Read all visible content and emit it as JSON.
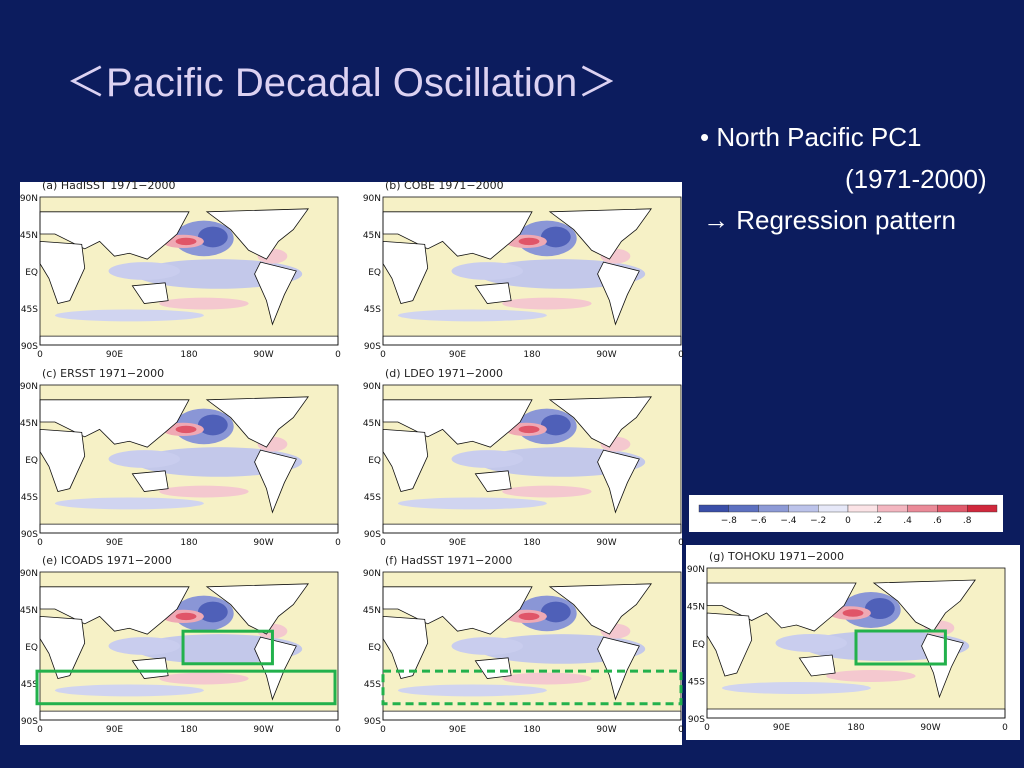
{
  "title": "＜Pacific Decadal Oscillation＞",
  "bullets": {
    "item": "North Pacific PC1",
    "period": "(1971-2000)",
    "result": "→ Regression pattern"
  },
  "panels": [
    {
      "label": "(a) HadISST 1971−2000"
    },
    {
      "label": "(b) COBE 1971−2000"
    },
    {
      "label": "(c) ERSST 1971−2000"
    },
    {
      "label": "(d) LDEO 1971−2000"
    },
    {
      "label": "(e) ICOADS 1971−2000"
    },
    {
      "label": "(f) HadSST 1971−2000"
    },
    {
      "label": "(g) TOHOKU 1971−2000"
    }
  ],
  "lat_labels": [
    "90N",
    "45N",
    "EQ",
    "45S",
    "90S"
  ],
  "lon_labels": [
    "0",
    "90E",
    "180",
    "90W",
    "0"
  ],
  "colorbar": {
    "labels": [
      "−.8",
      "−.6",
      "−.4",
      "−.2",
      "0",
      ".2",
      ".4",
      ".6",
      ".8"
    ]
  }
}
